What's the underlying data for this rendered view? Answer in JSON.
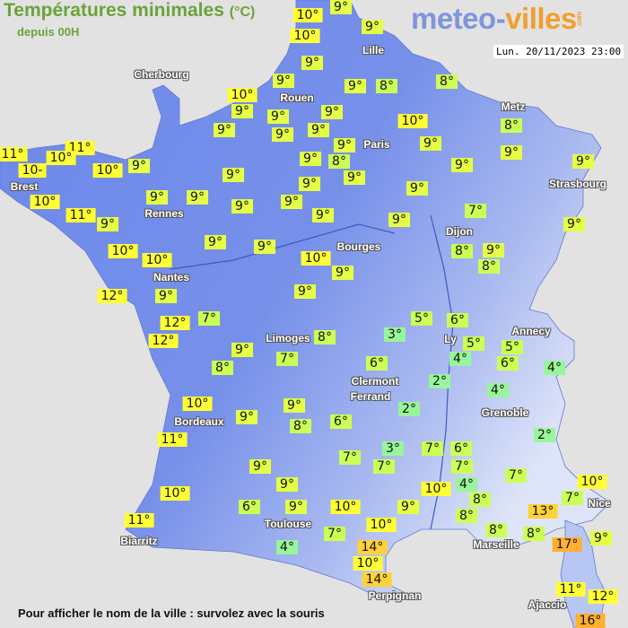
{
  "header": {
    "title": "Températures minimales",
    "unit": "(°C)",
    "subtitle": "depuis 00H",
    "logo_part1": "meteo-",
    "logo_part2": "villes",
    "logo_suffix": ".com",
    "datetime": "Lun. 20/11/2023 23:00"
  },
  "footer": {
    "hint": "Pour afficher le nom de la ville : survolez avec la souris"
  },
  "colors": {
    "cold_2_4": "#99f59a",
    "cool_5_8": "#ccff55",
    "mild_9": "#e4ff44",
    "warm_10_12": "#ffff33",
    "hot_13_14": "#ffd23a",
    "hotter_16_17": "#ffb030",
    "sea": "#e2e2e2",
    "land_dark": "#6d88ea",
    "land_light": "#c9d4f5",
    "title_green": "#6aa33a"
  },
  "cities": [
    "Cherbourg",
    "Lille",
    "Rouen",
    "Paris",
    "Metz",
    "Strasbourg",
    "Brest",
    "Rennes",
    "Dijon",
    "Bourges",
    "Nantes",
    "Limoges",
    "Annecy",
    "Ly",
    "Clermont",
    "Ferrand",
    "Grenoble",
    "Bordeaux",
    "Nice",
    "Toulouse",
    "Biarritz",
    "Marseille",
    "Perpignan",
    "Ajaccio"
  ],
  "temperatures": [
    "10°",
    "9°",
    "10°",
    "9°",
    "9°",
    "9°",
    "9°",
    "8°",
    "8°",
    "10°",
    "9°",
    "9°",
    "9°",
    "9°",
    "9°",
    "9°",
    "9°",
    "10°",
    "9°",
    "8°",
    "9°",
    "9°",
    "9°",
    "8°",
    "9°",
    "9°",
    "11°",
    "11°",
    "10-",
    "10°",
    "10°",
    "9°",
    "9°",
    "9°",
    "9°",
    "9°",
    "9°",
    "9°",
    "9°",
    "10°",
    "11°",
    "9°",
    "9°",
    "9°",
    "7°",
    "9°",
    "9°",
    "9°",
    "10°",
    "10°",
    "10°",
    "9°",
    "8°",
    "9°",
    "8°",
    "12°",
    "9°",
    "9°",
    "12°",
    "7°",
    "12°",
    "9°",
    "8°",
    "7°",
    "8°",
    "3°",
    "5°",
    "6°",
    "5°",
    "4°",
    "5°",
    "6°",
    "4°",
    "6°",
    "2°",
    "2°",
    "4°",
    "2°",
    "10°",
    "9°",
    "9°",
    "11°",
    "8°",
    "6°",
    "3°",
    "7°",
    "7°",
    "7°",
    "6°",
    "7°",
    "4°",
    "9°",
    "9°",
    "10°",
    "7°",
    "10°",
    "6°",
    "9°",
    "10°",
    "9°",
    "8°",
    "8°",
    "8°",
    "7°",
    "10°",
    "13°",
    "11°",
    "10°",
    "7°",
    "8°",
    "17°",
    "9°",
    "4°",
    "14°",
    "10°",
    "14°",
    "11°",
    "12°",
    "16°"
  ]
}
